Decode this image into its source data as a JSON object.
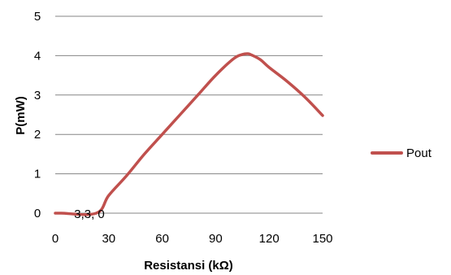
{
  "chart_data": {
    "type": "line",
    "title": "",
    "xlabel": "Resistansi (kΩ)",
    "ylabel": "P(mW)",
    "xlim": [
      0,
      150
    ],
    "ylim": [
      0,
      5
    ],
    "x_ticks": [
      0,
      30,
      60,
      90,
      120,
      150
    ],
    "y_ticks": [
      0,
      1,
      2,
      3,
      4,
      5
    ],
    "grid": "horizontal",
    "legend_position": "right",
    "series": [
      {
        "name": "Pout",
        "color": "#c0504d",
        "x": [
          0,
          3.3,
          23,
          30,
          40,
          50,
          60,
          70,
          80,
          90,
          100,
          105,
          108,
          110,
          115,
          120,
          130,
          140,
          150
        ],
        "y": [
          0,
          0,
          0,
          0.45,
          0.95,
          1.5,
          2.0,
          2.5,
          3.0,
          3.5,
          3.92,
          4.03,
          4.05,
          4.02,
          3.9,
          3.7,
          3.35,
          2.95,
          2.48
        ]
      }
    ],
    "annotations": [
      {
        "text": "3,3, 0",
        "x": 3.3,
        "y": 0
      }
    ]
  }
}
